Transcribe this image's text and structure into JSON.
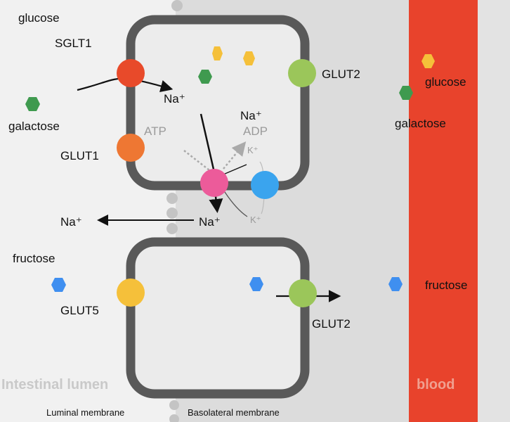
{
  "labels": {
    "glucose_lumen": "glucose",
    "sglt1": "SGLT1",
    "galactose_lumen": "galactose",
    "glut1": "GLUT1",
    "atp": "ATP",
    "na_in": "Na⁺",
    "na_top": "Na⁺",
    "adp": "ADP",
    "k_in": "K⁺",
    "k_out": "K⁺",
    "na_below": "Na⁺",
    "na_lumen": "Na⁺",
    "glut2_top": "GLUT2",
    "glucose_blood": "glucose",
    "galactose_blood": "galactose",
    "fructose_lumen": "fructose",
    "glut5": "GLUT5",
    "glut2_bottom": "GLUT2",
    "fructose_blood": "fructose",
    "intestinal_lumen": "Intestinal lumen",
    "blood": "blood",
    "luminal_membrane": "Luminal membrane",
    "basolateral_membrane": "Basolateral  membrane"
  },
  "colors": {
    "sglt1": "#e84a2a",
    "glut1": "#ee7733",
    "glut2": "#9bc65a",
    "glut5": "#f5c03a",
    "na_k_pump": "#ec5b9a",
    "k_channel": "#3aa4ee",
    "blood": "#e8432c",
    "glucose": "#f5c03a",
    "galactose": "#3f9a4f",
    "fructose": "#3f8ff0"
  }
}
